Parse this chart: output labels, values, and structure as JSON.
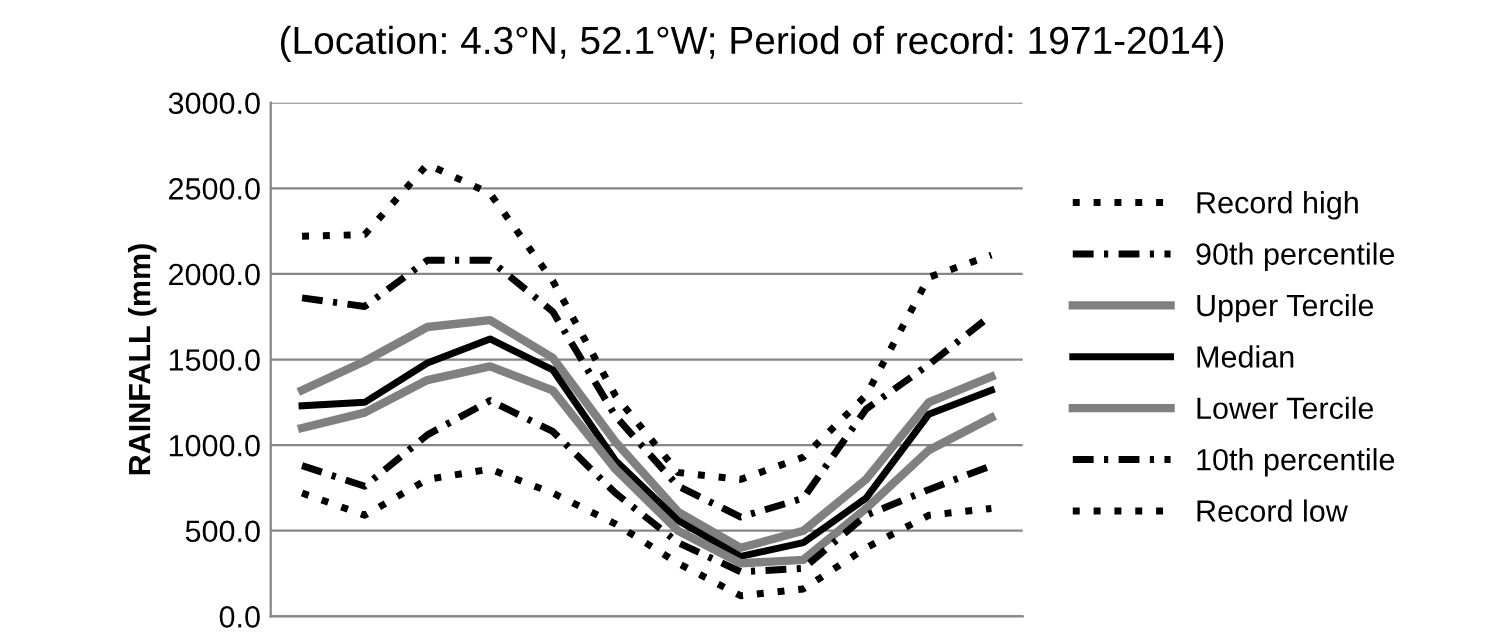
{
  "chart_data": {
    "type": "line",
    "subtitle": "(Location: 4.3°N, 52.1°W; Period of record: 1971-2014)",
    "ylabel": "RAINFALL (mm)",
    "categories": [
      null,
      null,
      null,
      null,
      null,
      null,
      null,
      null,
      null,
      null,
      null,
      null
    ],
    "ylim": [
      0,
      3000
    ],
    "yticks": [
      {
        "value": 0,
        "label": "0.0"
      },
      {
        "value": 500,
        "label": "500.0"
      },
      {
        "value": 1000,
        "label": "1000.0"
      },
      {
        "value": 1500,
        "label": "1500.0"
      },
      {
        "value": 2000,
        "label": "2000.0"
      },
      {
        "value": 2500,
        "label": "2500.0"
      },
      {
        "value": 3000,
        "label": "3000.0"
      }
    ],
    "grid": "y",
    "legend": "right",
    "tick_labels": "y",
    "marker": "none",
    "series": [
      {
        "name": "Record high",
        "color": "#000000",
        "line_style": "dotted",
        "values": [
          2220,
          2230,
          2640,
          2470,
          1960,
          1290,
          840,
          800,
          930,
          1290,
          1980,
          2110
        ]
      },
      {
        "name": "90th percentile",
        "color": "#000000",
        "line_style": "dashdot",
        "values": [
          1860,
          1810,
          2080,
          2080,
          1780,
          1170,
          760,
          580,
          690,
          1210,
          1470,
          1760
        ]
      },
      {
        "name": "Upper Tercile",
        "color": "#808080",
        "line_style": "solid",
        "values": [
          1320,
          1490,
          1690,
          1730,
          1510,
          1020,
          610,
          400,
          500,
          800,
          1250,
          1400
        ]
      },
      {
        "name": "Median",
        "color": "#000000",
        "line_style": "solid",
        "values": [
          1230,
          1250,
          1480,
          1620,
          1440,
          910,
          560,
          350,
          430,
          690,
          1180,
          1320
        ]
      },
      {
        "name": "Lower Tercile",
        "color": "#808080",
        "line_style": "solid",
        "values": [
          1100,
          1190,
          1380,
          1460,
          1320,
          860,
          500,
          310,
          330,
          630,
          970,
          1160
        ]
      },
      {
        "name": "10th percentile",
        "color": "#000000",
        "line_style": "dashdot",
        "values": [
          880,
          760,
          1060,
          1260,
          1080,
          720,
          430,
          260,
          280,
          590,
          740,
          880
        ]
      },
      {
        "name": "Record low",
        "color": "#000000",
        "line_style": "dotted",
        "values": [
          720,
          590,
          800,
          860,
          720,
          540,
          310,
          120,
          160,
          400,
          590,
          630
        ]
      }
    ]
  }
}
